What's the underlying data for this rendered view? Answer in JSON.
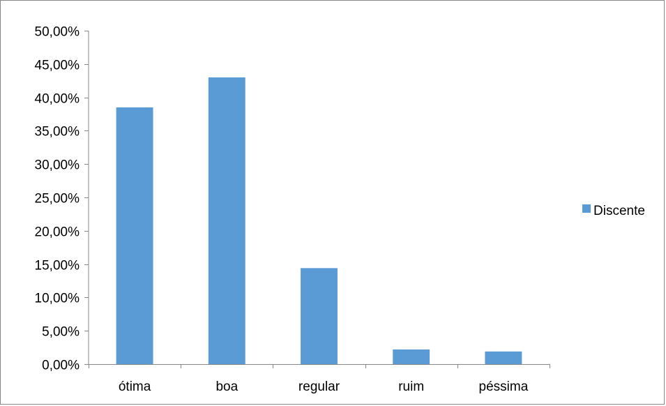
{
  "chart_data": {
    "type": "bar",
    "categories": [
      "ótima",
      "boa",
      "regular",
      "ruim",
      "péssima"
    ],
    "series": [
      {
        "name": "Discente",
        "values": [
          38.5,
          43.0,
          14.4,
          2.2,
          1.9
        ],
        "color": "#5B9BD5"
      }
    ],
    "ylim": [
      0,
      50
    ],
    "y_tick_values": [
      0,
      5,
      10,
      15,
      20,
      25,
      30,
      35,
      40,
      45,
      50
    ],
    "y_tick_labels": [
      "0,00%",
      "5,00%",
      "10,00%",
      "15,00%",
      "20,00%",
      "25,00%",
      "30,00%",
      "35,00%",
      "40,00%",
      "45,00%",
      "50,00%"
    ],
    "grid": false,
    "legend_position": "right",
    "axis_color": "#868686"
  }
}
